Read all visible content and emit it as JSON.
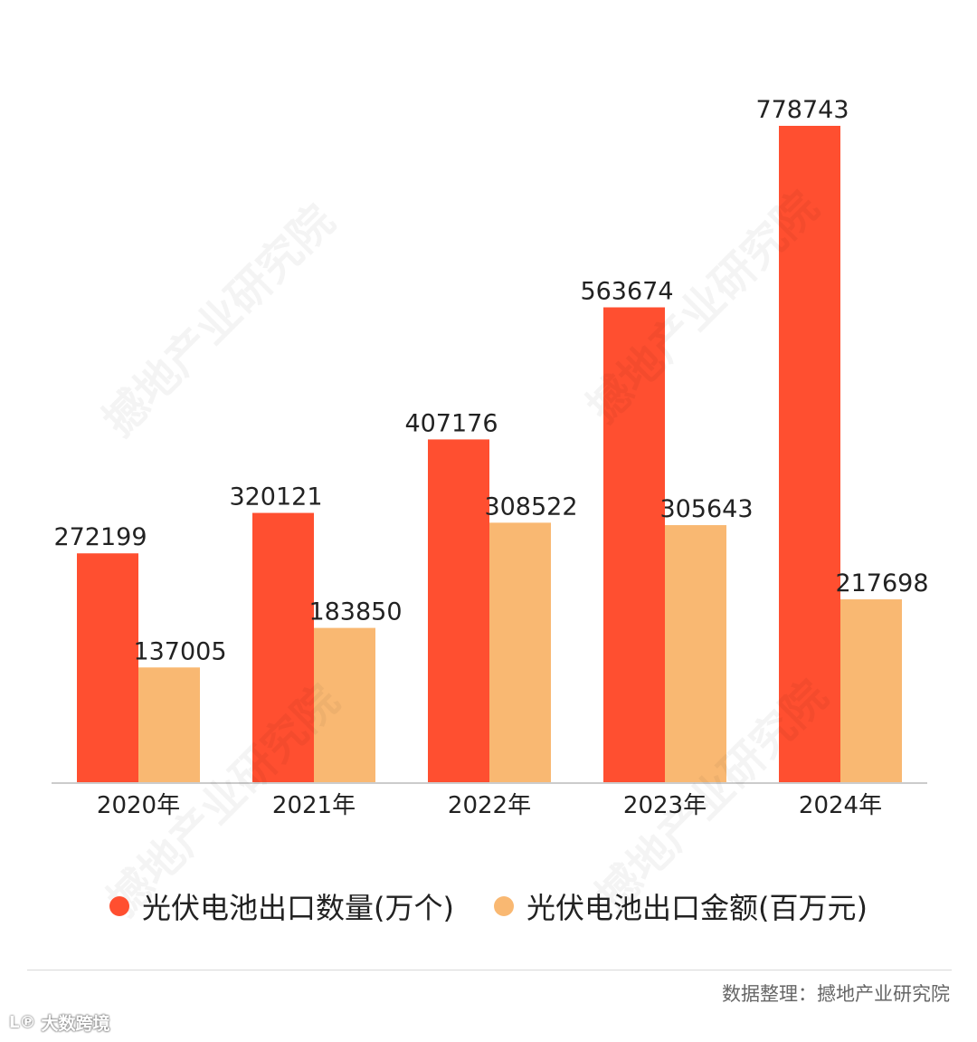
{
  "chart_data": {
    "type": "bar",
    "categories": [
      "2020年",
      "2021年",
      "2022年",
      "2023年",
      "2024年"
    ],
    "series": [
      {
        "name": "光伏电池出口数量(万个)",
        "values": [
          272199,
          320121,
          407176,
          563674,
          778743
        ],
        "color": "#ff4f30"
      },
      {
        "name": "光伏电池出口金额(百万元)",
        "values": [
          137005,
          183850,
          308522,
          305643,
          217698
        ],
        "color": "#f9b872"
      }
    ],
    "ylim": [
      0,
      778743
    ],
    "grid": false,
    "legend_position": "bottom",
    "xlabel": "",
    "ylabel": ""
  },
  "source": "数据整理：撼地产业研究院",
  "watermark_text": "撼地产业研究院",
  "brand": {
    "logo": "L℗",
    "name": "大数跨境"
  },
  "colors": {
    "axis": "#cccccc",
    "text": "#222222"
  }
}
